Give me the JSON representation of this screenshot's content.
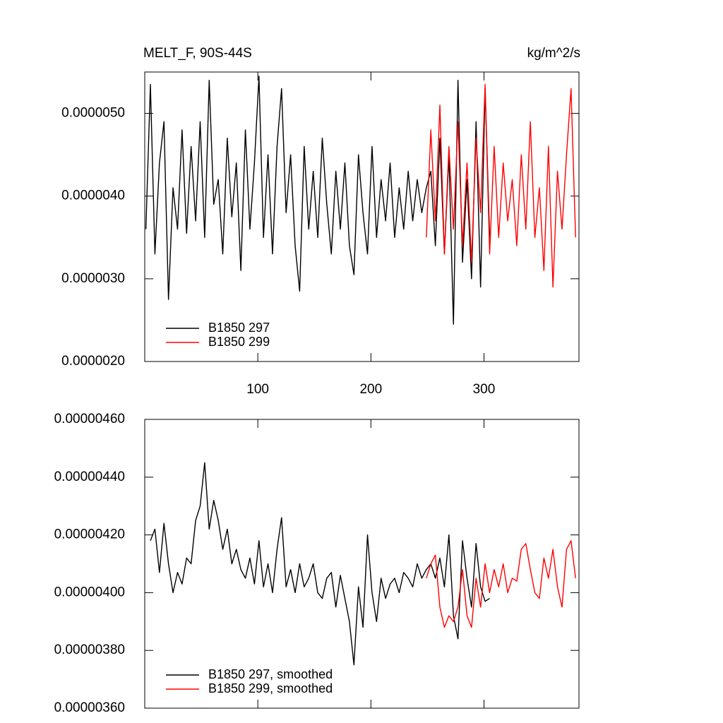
{
  "chart_data": [
    {
      "type": "line",
      "title": "MELT_F, 90S-44S",
      "units_label": "kg/m^2/s",
      "x": [
        1,
        5,
        9,
        13,
        17,
        21,
        25,
        29,
        33,
        37,
        41,
        45,
        49,
        53,
        57,
        61,
        65,
        69,
        73,
        77,
        81,
        85,
        89,
        93,
        97,
        101,
        105,
        109,
        113,
        117,
        121,
        125,
        129,
        133,
        137,
        141,
        145,
        149,
        153,
        157,
        161,
        165,
        169,
        173,
        177,
        181,
        185,
        189,
        193,
        197,
        201,
        205,
        209,
        213,
        217,
        221,
        225,
        229,
        233,
        237,
        241,
        245,
        249,
        253,
        257,
        261,
        265,
        269,
        273,
        277,
        281,
        285,
        289,
        293,
        297,
        301,
        305,
        309,
        313,
        317,
        321,
        325,
        329,
        333,
        337,
        341,
        345,
        349,
        353,
        357,
        361,
        365,
        369,
        373,
        377,
        381
      ],
      "xlim": [
        0,
        384
      ],
      "xticks": [
        100,
        200,
        300
      ],
      "ylim": [
        2e-06,
        5.5e-06
      ],
      "yticks": [
        {
          "value": 2e-06,
          "label": "0.0000020"
        },
        {
          "value": 3e-06,
          "label": "0.0000030"
        },
        {
          "value": 4e-06,
          "label": "0.0000040"
        },
        {
          "value": 5e-06,
          "label": "0.0000050"
        }
      ],
      "legend": "lower left",
      "series": [
        {
          "name": "B1850 297",
          "color": "#000000",
          "values": [
            3.6e-06,
            5.35e-06,
            3.3e-06,
            4.4e-06,
            4.9e-06,
            2.75e-06,
            4.1e-06,
            3.6e-06,
            4.8e-06,
            3.55e-06,
            4.6e-06,
            3.7e-06,
            4.9e-06,
            3.5e-06,
            5.4e-06,
            3.9e-06,
            4.2e-06,
            3.3e-06,
            4.7e-06,
            3.75e-06,
            4.4e-06,
            3.1e-06,
            4.8e-06,
            3.6e-06,
            4.4e-06,
            5.45e-06,
            3.5e-06,
            4.5e-06,
            3.3e-06,
            4.6e-06,
            5.3e-06,
            3.8e-06,
            4.5e-06,
            3.4e-06,
            2.85e-06,
            4.6e-06,
            3.6e-06,
            4.3e-06,
            3.5e-06,
            4.7e-06,
            3.9e-06,
            3.3e-06,
            4.3e-06,
            3.6e-06,
            4.4e-06,
            3.4e-06,
            3.05e-06,
            4.5e-06,
            3.8e-06,
            3.3e-06,
            4.6e-06,
            3.5e-06,
            4.2e-06,
            3.7e-06,
            4.4e-06,
            3.5e-06,
            4.1e-06,
            3.6e-06,
            4.3e-06,
            3.7e-06,
            4.2e-06,
            3.8e-06,
            4.1e-06,
            4.3e-06,
            3.4e-06,
            4.7e-06,
            3.3e-06,
            4.5e-06,
            2.45e-06,
            5.4e-06,
            3.2e-06,
            4.2e-06,
            3e-06,
            4.9e-06,
            2.9e-06,
            5.3e-06,
            3.5e-06,
            null,
            null,
            null,
            null,
            null,
            null,
            null,
            null,
            null,
            null,
            null,
            null,
            null,
            null,
            null,
            null,
            null,
            null,
            null
          ]
        },
        {
          "name": "B1850 299",
          "color": "#ff0000",
          "values": [
            null,
            null,
            null,
            null,
            null,
            null,
            null,
            null,
            null,
            null,
            null,
            null,
            null,
            null,
            null,
            null,
            null,
            null,
            null,
            null,
            null,
            null,
            null,
            null,
            null,
            null,
            null,
            null,
            null,
            null,
            null,
            null,
            null,
            null,
            null,
            null,
            null,
            null,
            null,
            null,
            null,
            null,
            null,
            null,
            null,
            null,
            null,
            null,
            null,
            null,
            null,
            null,
            null,
            null,
            null,
            null,
            null,
            null,
            null,
            null,
            null,
            null,
            3.5e-06,
            4.8e-06,
            3.7e-06,
            5.1e-06,
            3.3e-06,
            4.6e-06,
            3.6e-06,
            4.9e-06,
            3.4e-06,
            4.4e-06,
            3.2e-06,
            4.7e-06,
            3.8e-06,
            5.35e-06,
            3.3e-06,
            4.6e-06,
            3.5e-06,
            4.4e-06,
            3.7e-06,
            4.2e-06,
            3.4e-06,
            4.5e-06,
            3.6e-06,
            4.9e-06,
            3.5e-06,
            4.1e-06,
            3.1e-06,
            4.6e-06,
            2.9e-06,
            4.3e-06,
            3.6e-06,
            4.5e-06,
            5.3e-06,
            3.5e-06
          ]
        }
      ]
    },
    {
      "type": "line",
      "x": [
        1,
        5,
        9,
        13,
        17,
        21,
        25,
        29,
        33,
        37,
        41,
        45,
        49,
        53,
        57,
        61,
        65,
        69,
        73,
        77,
        81,
        85,
        89,
        93,
        97,
        101,
        105,
        109,
        113,
        117,
        121,
        125,
        129,
        133,
        137,
        141,
        145,
        149,
        153,
        157,
        161,
        165,
        169,
        173,
        177,
        181,
        185,
        189,
        193,
        197,
        201,
        205,
        209,
        213,
        217,
        221,
        225,
        229,
        233,
        237,
        241,
        245,
        249,
        253,
        257,
        261,
        265,
        269,
        273,
        277,
        281,
        285,
        289,
        293,
        297,
        301,
        305,
        309,
        313,
        317,
        321,
        325,
        329,
        333,
        337,
        341,
        345,
        349,
        353,
        357,
        361,
        365,
        369,
        373,
        377,
        381
      ],
      "xlim": [
        0,
        384
      ],
      "xticks": [
        100,
        200,
        300
      ],
      "ylim": [
        3.6e-06,
        4.6e-06
      ],
      "yticks": [
        {
          "value": 3.6e-06,
          "label": "0.00000360"
        },
        {
          "value": 3.8e-06,
          "label": "0.00000380"
        },
        {
          "value": 4e-06,
          "label": "0.00000400"
        },
        {
          "value": 4.2e-06,
          "label": "0.00000420"
        },
        {
          "value": 4.4e-06,
          "label": "0.00000440"
        },
        {
          "value": 4.6e-06,
          "label": "0.00000460"
        }
      ],
      "legend": "lower left",
      "series": [
        {
          "name": "B1850 297, smoothed",
          "color": "#000000",
          "values": [
            null,
            4.18e-06,
            4.22e-06,
            4.07e-06,
            4.24e-06,
            4.1e-06,
            4e-06,
            4.07e-06,
            4.03e-06,
            4.12e-06,
            4.1e-06,
            4.25e-06,
            4.3e-06,
            4.45e-06,
            4.22e-06,
            4.32e-06,
            4.25e-06,
            4.15e-06,
            4.22e-06,
            4.1e-06,
            4.15e-06,
            4.08e-06,
            4.05e-06,
            4.12e-06,
            4.03e-06,
            4.18e-06,
            4.02e-06,
            4.1e-06,
            4e-06,
            4.15e-06,
            4.26e-06,
            4.02e-06,
            4.08e-06,
            4e-06,
            4.1e-06,
            4.02e-06,
            4.05e-06,
            4.1e-06,
            4e-06,
            3.98e-06,
            4.05e-06,
            4.07e-06,
            3.95e-06,
            4.06e-06,
            3.98e-06,
            3.9e-06,
            3.75e-06,
            4.02e-06,
            3.88e-06,
            4.2e-06,
            4e-06,
            3.9e-06,
            4.05e-06,
            3.98e-06,
            4.03e-06,
            4.05e-06,
            4e-06,
            4.07e-06,
            4.05e-06,
            4.02e-06,
            4.1e-06,
            4.05e-06,
            4.08e-06,
            4.1e-06,
            4.05e-06,
            4.12e-06,
            4.02e-06,
            4.2e-06,
            3.92e-06,
            3.84e-06,
            4.18e-06,
            4.05e-06,
            3.95e-06,
            4.17e-06,
            4.02e-06,
            3.97e-06,
            3.98e-06,
            null,
            null,
            null,
            null,
            null,
            null,
            null,
            null,
            null,
            null,
            null,
            null,
            null,
            null,
            null,
            null,
            null,
            null,
            null
          ]
        },
        {
          "name": "B1850 299, smoothed",
          "color": "#ff0000",
          "values": [
            null,
            null,
            null,
            null,
            null,
            null,
            null,
            null,
            null,
            null,
            null,
            null,
            null,
            null,
            null,
            null,
            null,
            null,
            null,
            null,
            null,
            null,
            null,
            null,
            null,
            null,
            null,
            null,
            null,
            null,
            null,
            null,
            null,
            null,
            null,
            null,
            null,
            null,
            null,
            null,
            null,
            null,
            null,
            null,
            null,
            null,
            null,
            null,
            null,
            null,
            null,
            null,
            null,
            null,
            null,
            null,
            null,
            null,
            null,
            null,
            null,
            null,
            4.05e-06,
            4.1e-06,
            4.13e-06,
            3.95e-06,
            3.88e-06,
            3.92e-06,
            3.9e-06,
            3.95e-06,
            4.08e-06,
            3.92e-06,
            3.88e-06,
            4.05e-06,
            3.95e-06,
            4.1e-06,
            4e-06,
            4.08e-06,
            4.02e-06,
            4.1e-06,
            4e-06,
            4.05e-06,
            4.04e-06,
            4.15e-06,
            4.17e-06,
            4.08e-06,
            4e-06,
            3.98e-06,
            4.12e-06,
            4.05e-06,
            4.15e-06,
            4.02e-06,
            3.95e-06,
            4.15e-06,
            4.18e-06,
            4.05e-06
          ]
        }
      ]
    }
  ]
}
